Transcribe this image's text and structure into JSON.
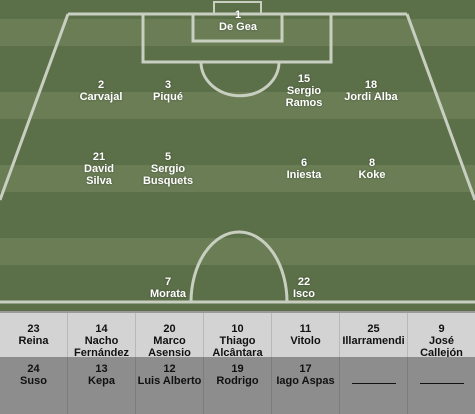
{
  "pitch": {
    "players": [
      {
        "id": "gk",
        "number": "1",
        "name": "De Gea"
      },
      {
        "id": "rb",
        "number": "2",
        "name": "Carvajal"
      },
      {
        "id": "cb1",
        "number": "3",
        "name": "Piqué"
      },
      {
        "id": "cb2",
        "number": "15",
        "name": "Sergio Ramos"
      },
      {
        "id": "lb",
        "number": "18",
        "name": "Jordi Alba"
      },
      {
        "id": "m1",
        "number": "21",
        "name": "David Silva"
      },
      {
        "id": "m2",
        "number": "5",
        "name": "Sergio Busquets"
      },
      {
        "id": "m3",
        "number": "6",
        "name": "Iniesta"
      },
      {
        "id": "m4",
        "number": "8",
        "name": "Koke"
      },
      {
        "id": "f1",
        "number": "7",
        "name": "Morata"
      },
      {
        "id": "f2",
        "number": "22",
        "name": "Isco"
      }
    ]
  },
  "bench": {
    "row1": [
      {
        "number": "23",
        "name": "Reina"
      },
      {
        "number": "14",
        "name": "Nacho Fernández"
      },
      {
        "number": "20",
        "name": "Marco Asensio"
      },
      {
        "number": "10",
        "name": "Thiago Alcântara"
      },
      {
        "number": "11",
        "name": "Vitolo"
      },
      {
        "number": "25",
        "name": "Illarramendi"
      },
      {
        "number": "9",
        "name": "José Callejón"
      }
    ],
    "row2": [
      {
        "number": "24",
        "name": "Suso"
      },
      {
        "number": "13",
        "name": "Kepa"
      },
      {
        "number": "12",
        "name": "Luis Alberto"
      },
      {
        "number": "19",
        "name": "Rodrigo"
      },
      {
        "number": "17",
        "name": "Iago Aspas"
      },
      {
        "number": "",
        "name": ""
      },
      {
        "number": "",
        "name": ""
      }
    ]
  }
}
